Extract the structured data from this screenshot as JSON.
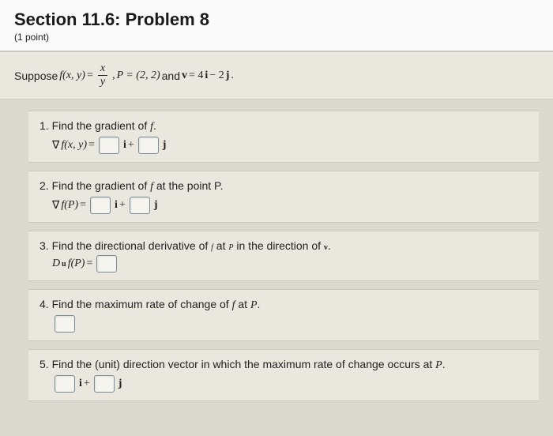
{
  "header": {
    "title": "Section 11.6: Problem 8",
    "points": "(1 point)"
  },
  "suppose": {
    "prefix": "Suppose ",
    "func": "f(x, y)",
    "eq": " = ",
    "frac_num": "x",
    "frac_den": "y",
    "point_sep": " , ",
    "point_def": "P = (2, 2)",
    "and": " and ",
    "vec_v": "v",
    "vec_eq": " = 4",
    "vec_i": "i",
    "vec_minus": " − 2",
    "vec_j": "j",
    "period": "."
  },
  "problems": [
    {
      "num": "1.",
      "prompt": "Find the gradient of ",
      "prompt_f": "f",
      "prompt_end": ".",
      "expr_nabla": "∇",
      "expr_func": "f(x, y)",
      "expr_eq": " = ",
      "i_label": "i",
      "plus": "+",
      "j_label": "j"
    },
    {
      "num": "2.",
      "prompt": "Find the gradient of ",
      "prompt_f": "f",
      "prompt_end": " at the point P.",
      "expr_nabla": "∇",
      "expr_func": "f(P)",
      "expr_eq": " = ",
      "i_label": "i",
      "plus": "+",
      "j_label": "j"
    },
    {
      "num": "3.",
      "prompt_a": "Find the directional derivative of ",
      "prompt_f": "f",
      "prompt_b": " at ",
      "prompt_P": "P",
      "prompt_c": " in the direction of ",
      "prompt_v": "v",
      "prompt_end": ".",
      "expr_D": "D",
      "expr_sub": "u",
      "expr_func": "f(P)",
      "expr_eq": " = "
    },
    {
      "num": "4.",
      "prompt_a": "Find the maximum rate of change of ",
      "prompt_f": "f",
      "prompt_b": " at ",
      "prompt_P": "P",
      "prompt_end": "."
    },
    {
      "num": "5.",
      "prompt_a": "Find the (unit) direction vector in which the maximum rate of change occurs at ",
      "prompt_P": "P",
      "prompt_end": ".",
      "i_label": "i",
      "plus": "+",
      "j_label": "j"
    }
  ]
}
